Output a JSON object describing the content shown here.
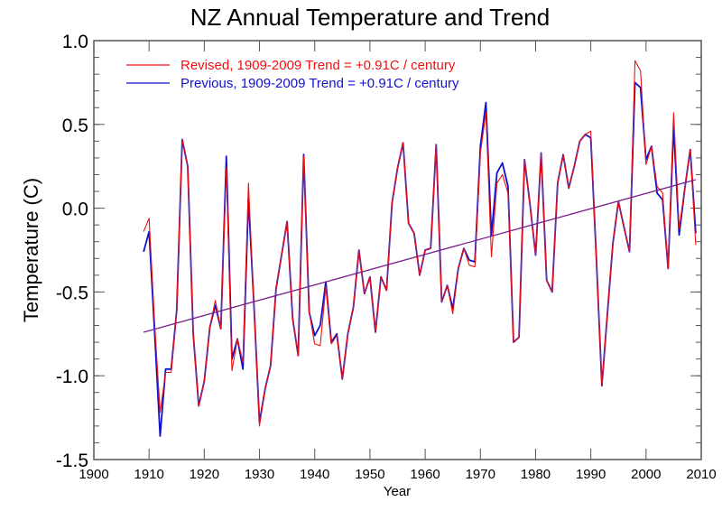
{
  "chart_data": {
    "type": "line",
    "title": "NZ Annual Temperature and Trend",
    "xlabel": "Year",
    "ylabel": "Temperature (C)",
    "xlim": [
      1900,
      2010
    ],
    "ylim": [
      -1.5,
      1.0
    ],
    "grid": false,
    "legend_position": "top-left",
    "xticks": [
      1900,
      1910,
      1920,
      1930,
      1940,
      1950,
      1960,
      1970,
      1980,
      1990,
      2000,
      2010
    ],
    "xtick_labels": [
      "1900",
      "1910",
      "1920",
      "1930",
      "1940",
      "1950",
      "1960",
      "1970",
      "1980",
      "1990",
      "2000",
      "2010"
    ],
    "yticks": [
      1.0,
      0.5,
      0.0,
      -0.5,
      -1.0,
      -1.5
    ],
    "ytick_labels": [
      "1.0",
      "0.5",
      "0.0",
      "-0.5",
      "-1.0",
      "-1.5"
    ],
    "x": [
      1909,
      1910,
      1911,
      1912,
      1913,
      1914,
      1915,
      1916,
      1917,
      1918,
      1919,
      1920,
      1921,
      1922,
      1923,
      1924,
      1925,
      1926,
      1927,
      1928,
      1929,
      1930,
      1931,
      1932,
      1933,
      1934,
      1935,
      1936,
      1937,
      1938,
      1939,
      1940,
      1941,
      1942,
      1943,
      1944,
      1945,
      1946,
      1947,
      1948,
      1949,
      1950,
      1951,
      1952,
      1953,
      1954,
      1955,
      1956,
      1957,
      1958,
      1959,
      1960,
      1961,
      1962,
      1963,
      1964,
      1965,
      1966,
      1967,
      1968,
      1969,
      1970,
      1971,
      1972,
      1973,
      1974,
      1975,
      1976,
      1977,
      1978,
      1979,
      1980,
      1981,
      1982,
      1983,
      1984,
      1985,
      1986,
      1987,
      1988,
      1989,
      1990,
      1991,
      1992,
      1993,
      1994,
      1995,
      1996,
      1997,
      1998,
      1999,
      2000,
      2001,
      2002,
      2003,
      2004,
      2005,
      2006,
      2007,
      2008,
      2009
    ],
    "series": [
      {
        "name": "Revised",
        "legend": "Revised,  1909-2009 Trend = +0.91C / century",
        "color": "#ee1111",
        "values": [
          -0.14,
          -0.06,
          -0.68,
          -1.22,
          -0.98,
          -0.98,
          -0.61,
          0.41,
          0.25,
          -0.75,
          -1.18,
          -1.03,
          -0.71,
          -0.55,
          -0.72,
          0.24,
          -0.97,
          -0.78,
          -0.92,
          0.15,
          -0.58,
          -1.3,
          -1.08,
          -0.94,
          -0.48,
          -0.28,
          -0.08,
          -0.66,
          -0.88,
          0.31,
          -0.62,
          -0.81,
          -0.82,
          -0.47,
          -0.81,
          -0.76,
          -1.02,
          -0.75,
          -0.59,
          -0.25,
          -0.51,
          -0.41,
          -0.74,
          -0.41,
          -0.49,
          0.03,
          0.24,
          0.39,
          -0.09,
          -0.15,
          -0.4,
          -0.25,
          -0.24,
          0.38,
          -0.56,
          -0.46,
          -0.63,
          -0.36,
          -0.24,
          -0.34,
          -0.35,
          0.33,
          0.57,
          -0.29,
          0.15,
          0.2,
          0.09,
          -0.8,
          -0.77,
          0.29,
          0.02,
          -0.28,
          0.33,
          -0.43,
          -0.5,
          0.15,
          0.32,
          0.12,
          0.25,
          0.4,
          0.44,
          0.46,
          -0.3,
          -1.06,
          -0.63,
          -0.21,
          0.04,
          -0.11,
          -0.26,
          0.88,
          0.82,
          0.26,
          0.37,
          0.13,
          0.09,
          -0.36,
          0.57,
          -0.12,
          0.11,
          0.35,
          -0.22
        ]
      },
      {
        "name": "Previous",
        "legend": "Previous, 1909-2009 Trend = +0.91C / century",
        "color": "#1111cc",
        "values": [
          -0.26,
          -0.14,
          -0.74,
          -1.36,
          -0.96,
          -0.96,
          -0.61,
          0.41,
          0.25,
          -0.75,
          -1.18,
          -1.03,
          -0.71,
          -0.58,
          -0.72,
          0.31,
          -0.9,
          -0.78,
          -0.96,
          0.06,
          -0.58,
          -1.28,
          -1.08,
          -0.94,
          -0.48,
          -0.28,
          -0.08,
          -0.66,
          -0.88,
          0.32,
          -0.62,
          -0.76,
          -0.7,
          -0.44,
          -0.8,
          -0.75,
          -1.02,
          -0.75,
          -0.59,
          -0.25,
          -0.51,
          -0.41,
          -0.74,
          -0.41,
          -0.49,
          0.03,
          0.24,
          0.39,
          -0.09,
          -0.15,
          -0.4,
          -0.25,
          -0.24,
          0.38,
          -0.56,
          -0.46,
          -0.6,
          -0.36,
          -0.24,
          -0.31,
          -0.32,
          0.37,
          0.63,
          -0.16,
          0.21,
          0.27,
          0.13,
          -0.8,
          -0.77,
          0.29,
          0.02,
          -0.28,
          0.33,
          -0.43,
          -0.5,
          0.15,
          0.32,
          0.12,
          0.25,
          0.4,
          0.44,
          0.42,
          -0.3,
          -1.06,
          -0.63,
          -0.21,
          0.04,
          -0.11,
          -0.26,
          0.75,
          0.72,
          0.29,
          0.37,
          0.09,
          0.05,
          -0.36,
          0.49,
          -0.16,
          0.11,
          0.35,
          -0.15
        ]
      }
    ],
    "trend": {
      "name": "Trend",
      "color": "#7a1f8a",
      "x": [
        1909,
        2009
      ],
      "y": [
        -0.74,
        0.17
      ],
      "slope_per_century": 0.91
    }
  }
}
